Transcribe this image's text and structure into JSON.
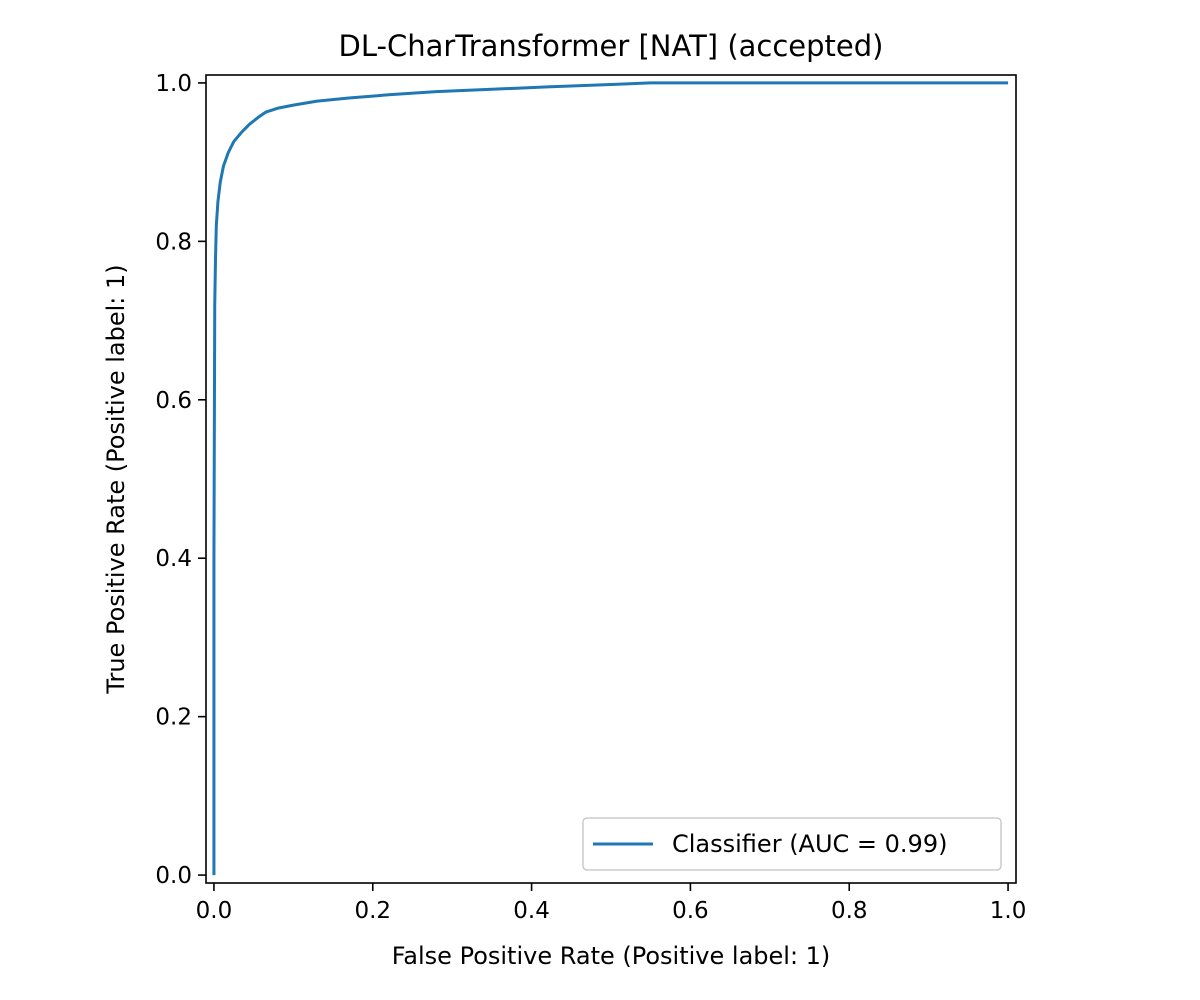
{
  "chart_data": {
    "type": "line",
    "title": "DL-CharTransformer [NAT] (accepted)",
    "xlabel": "False Positive Rate (Positive label: 1)",
    "ylabel": "True Positive Rate (Positive label: 1)",
    "xlim": [
      -0.01,
      1.01
    ],
    "ylim": [
      -0.01,
      1.01
    ],
    "x_ticks": [
      0.0,
      0.2,
      0.4,
      0.6,
      0.8,
      1.0
    ],
    "x_tick_labels": [
      "0.0",
      "0.2",
      "0.4",
      "0.6",
      "0.8",
      "1.0"
    ],
    "y_ticks": [
      0.0,
      0.2,
      0.4,
      0.6,
      0.8,
      1.0
    ],
    "y_tick_labels": [
      "0.0",
      "0.2",
      "0.4",
      "0.6",
      "0.8",
      "1.0"
    ],
    "grid": false,
    "legend_position": "bottom-right",
    "series": [
      {
        "name": "Classifier (AUC = 0.99)",
        "color": "#1f77b4",
        "x": [
          0.0,
          0.0,
          0.001,
          0.002,
          0.003,
          0.005,
          0.008,
          0.012,
          0.018,
          0.025,
          0.035,
          0.045,
          0.055,
          0.065,
          0.08,
          0.1,
          0.13,
          0.17,
          0.22,
          0.28,
          0.35,
          0.42,
          0.5,
          0.55,
          0.7,
          0.85,
          1.0
        ],
        "y": [
          0.0,
          0.4,
          0.72,
          0.78,
          0.82,
          0.85,
          0.875,
          0.895,
          0.912,
          0.926,
          0.938,
          0.948,
          0.956,
          0.963,
          0.968,
          0.972,
          0.977,
          0.981,
          0.985,
          0.989,
          0.992,
          0.995,
          0.998,
          1.0,
          1.0,
          1.0,
          1.0
        ]
      }
    ]
  }
}
